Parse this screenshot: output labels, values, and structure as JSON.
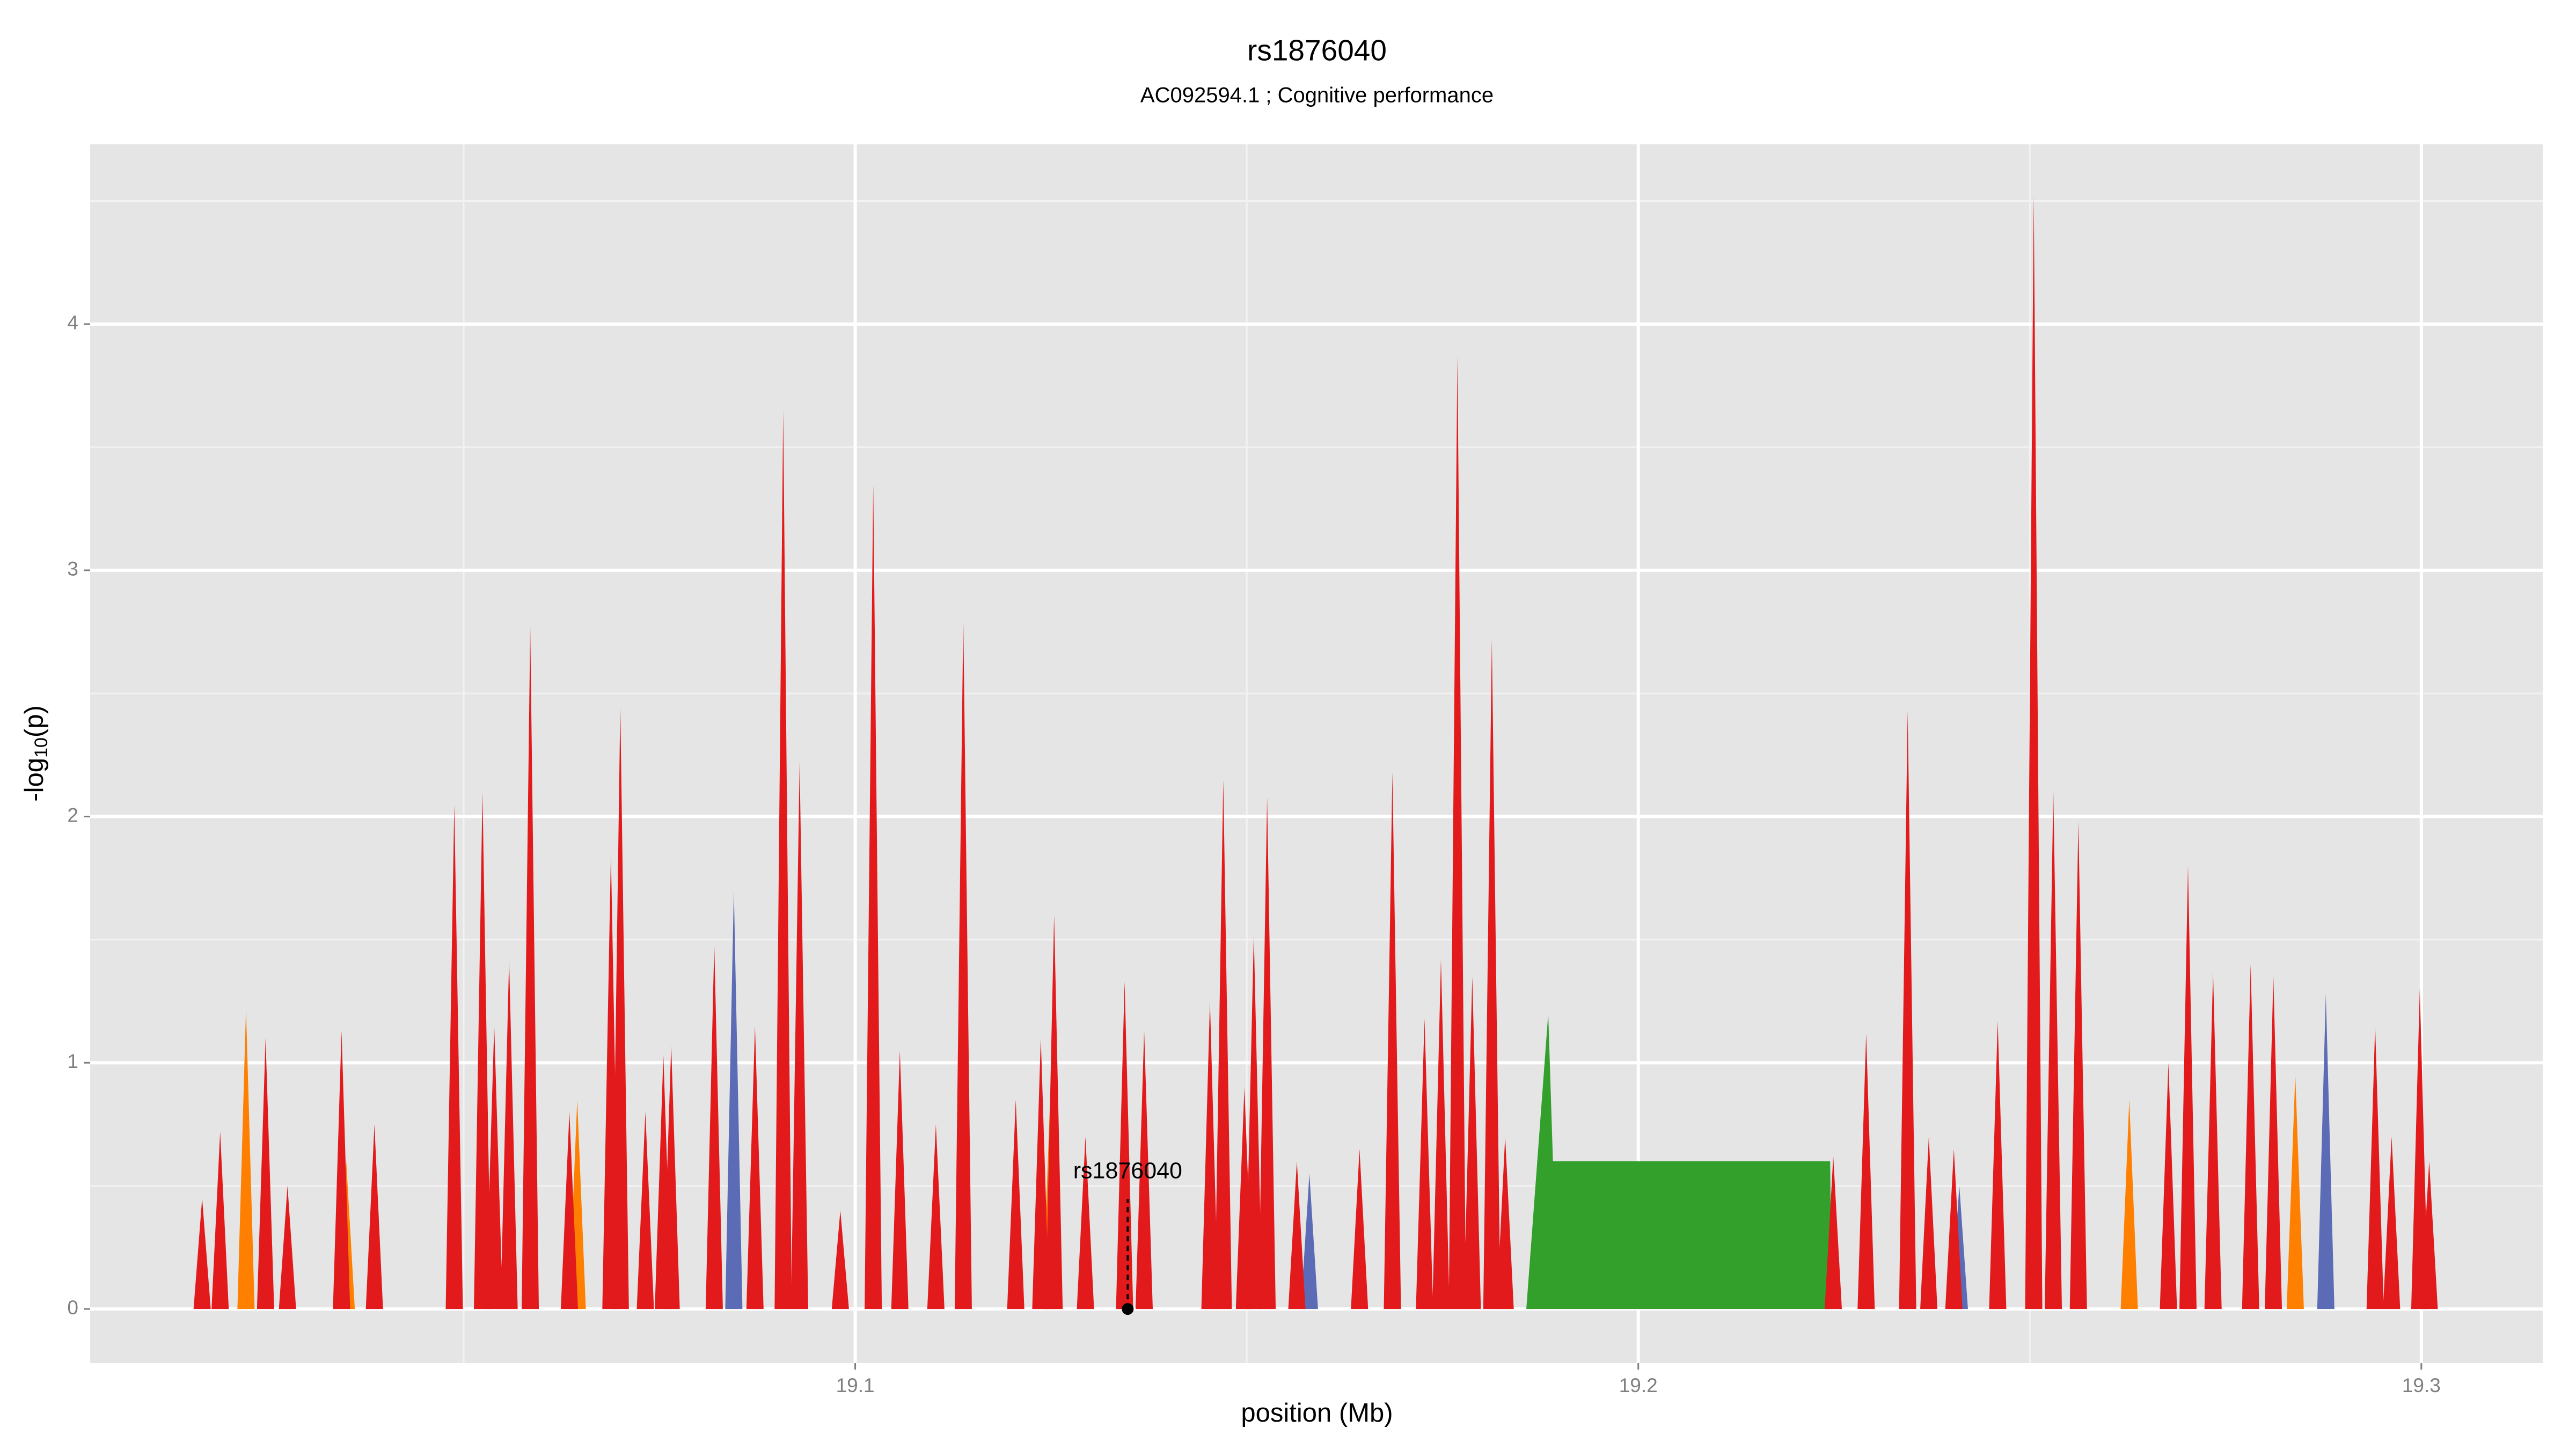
{
  "chart_data": {
    "type": "spike",
    "title": "rs1876040",
    "subtitle": "AC092594.1 ; Cognitive performance",
    "xlabel": "position (Mb)",
    "ylabel": {
      "prefix": "-log",
      "sub": "10",
      "suffix": "(p)"
    },
    "xlim": [
      19.0023,
      19.3155
    ],
    "ylim": [
      -0.22,
      4.73
    ],
    "xticks": [
      19.1,
      19.2,
      19.3
    ],
    "yticks": [
      0,
      1,
      2,
      3,
      4
    ],
    "xminorticks": [
      19.05,
      19.15,
      19.25
    ],
    "yminorticks": [
      0.5,
      1.5,
      2.5,
      3.5,
      4.5
    ],
    "grid": true,
    "series": [
      {
        "name": "orange",
        "color": "#ff7f00",
        "x": [
          19.0222,
          19.035,
          19.0645,
          19.125,
          19.2627,
          19.2839
        ],
        "values": [
          1.22,
          0.6,
          0.85,
          0.95,
          0.85,
          0.95
        ]
      },
      {
        "name": "blue",
        "color": "#5b6bb5",
        "x": [
          19.0845,
          19.158,
          19.241,
          19.2878
        ],
        "values": [
          1.7,
          0.55,
          0.5,
          1.28
        ]
      },
      {
        "name": "green",
        "color": "#33a02c",
        "shape": "area",
        "x": [
          19.1857,
          19.1885,
          19.1891,
          19.2245,
          19.2247
        ],
        "values": [
          0,
          1.2,
          0.6,
          0.6,
          0
        ]
      },
      {
        "name": "red",
        "color": "#e31a1c",
        "x": [
          19.0166,
          19.0189,
          19.0247,
          19.0275,
          19.0344,
          19.0386,
          19.0488,
          19.0524,
          19.0539,
          19.0558,
          19.0585,
          19.0635,
          19.0688,
          19.07,
          19.0732,
          19.0755,
          19.0765,
          19.082,
          19.0872,
          19.0908,
          19.0929,
          19.0981,
          19.1023,
          19.1057,
          19.1103,
          19.1138,
          19.1205,
          19.1237,
          19.1254,
          19.1294,
          19.1344,
          19.1369,
          19.1453,
          19.147,
          19.1497,
          19.1509,
          19.1526,
          19.1564,
          19.1644,
          19.1686,
          19.1727,
          19.1748,
          19.1769,
          19.1788,
          19.1813,
          19.183,
          19.2249,
          19.2291,
          19.2344,
          19.2371,
          19.2403,
          19.2459,
          19.2505,
          19.253,
          19.2562,
          19.2677,
          19.2702,
          19.2734,
          19.2782,
          19.2811,
          19.2941,
          19.2962,
          19.2998,
          19.301
        ],
        "values": [
          0.45,
          0.72,
          1.1,
          0.5,
          1.13,
          0.75,
          2.05,
          2.1,
          1.15,
          1.42,
          2.77,
          0.8,
          1.85,
          2.45,
          0.8,
          1.03,
          1.07,
          1.48,
          1.15,
          3.65,
          2.22,
          0.4,
          3.35,
          1.05,
          0.75,
          2.8,
          0.85,
          1.1,
          1.6,
          0.7,
          1.33,
          1.13,
          1.25,
          2.15,
          0.9,
          1.52,
          2.08,
          0.6,
          0.65,
          2.18,
          1.18,
          1.42,
          3.87,
          1.35,
          2.72,
          0.7,
          0.62,
          1.12,
          2.43,
          0.7,
          0.65,
          1.17,
          4.52,
          2.1,
          1.98,
          1.0,
          1.8,
          1.37,
          1.4,
          1.35,
          1.15,
          0.7,
          1.3,
          0.6
        ]
      }
    ],
    "annotation": {
      "label": "rs1876040",
      "x": 19.1348,
      "y": 0
    }
  }
}
